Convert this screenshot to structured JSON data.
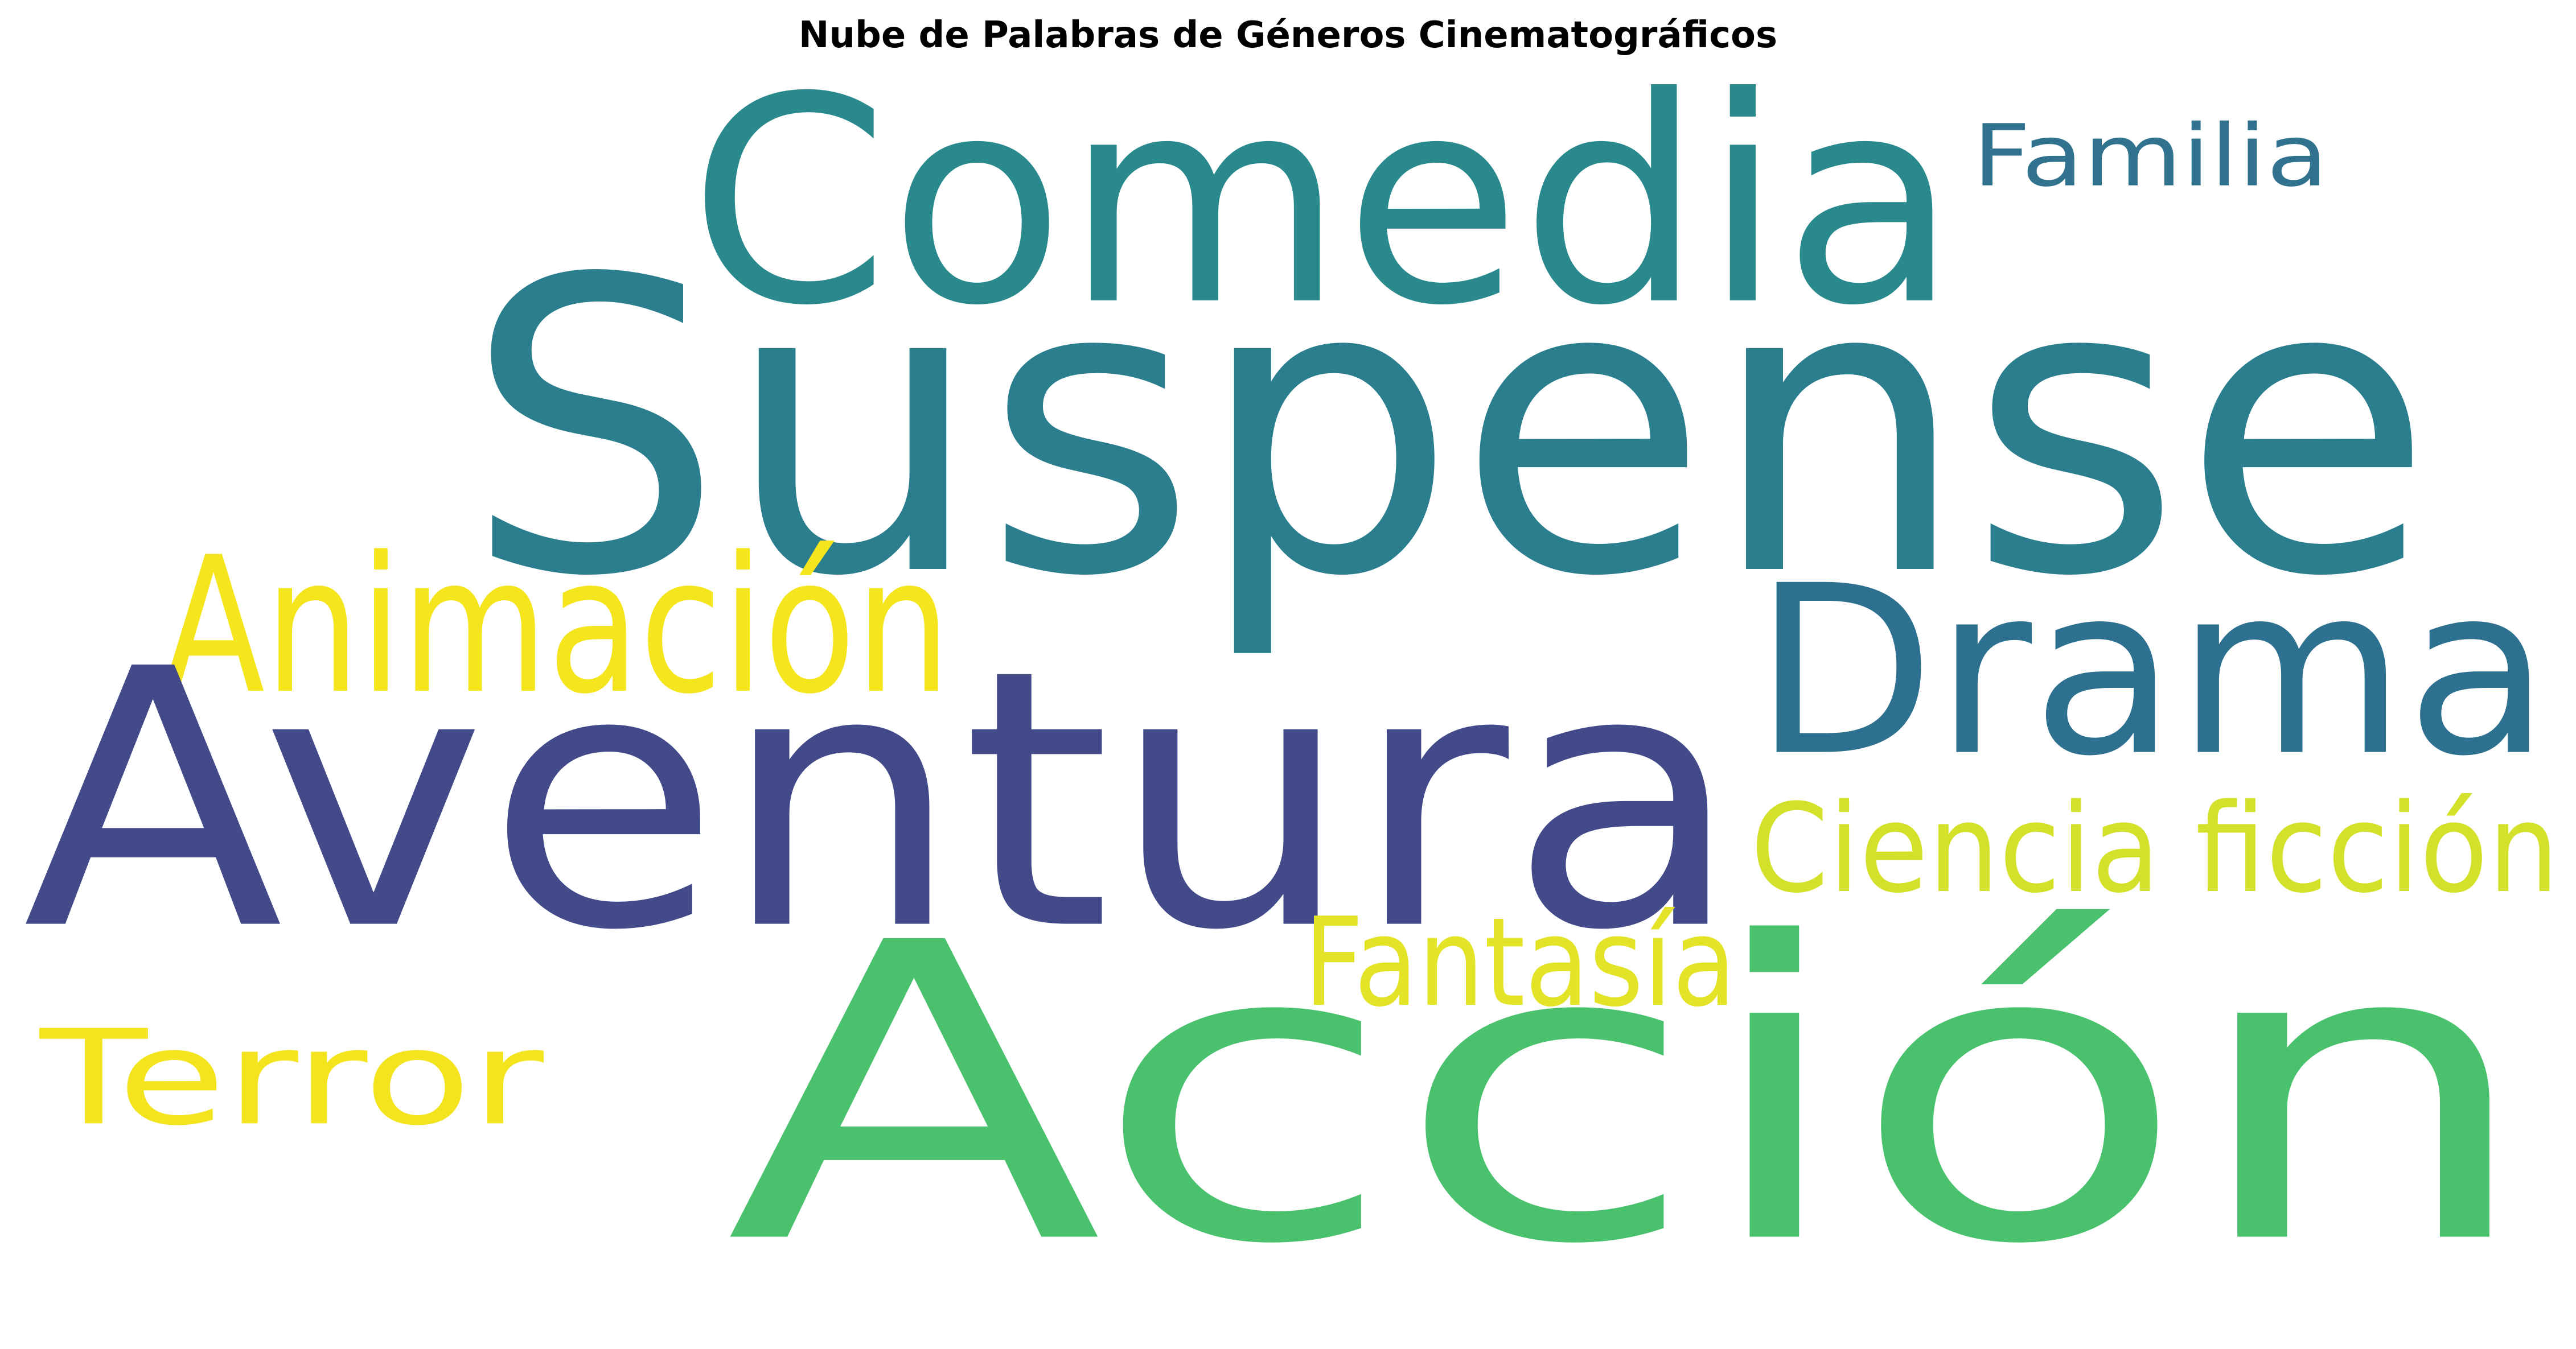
{
  "title": "Nube de Palabras de Géneros Cinematográficos",
  "words": {
    "suspense": {
      "text": "Suspense",
      "color": "#2a7e8e"
    },
    "comedia": {
      "text": "Comedia",
      "color": "#29898c"
    },
    "familia": {
      "text": "Familia",
      "color": "#31728f"
    },
    "animacion": {
      "text": "Animación",
      "color": "#f5e51d"
    },
    "drama": {
      "text": "Drama",
      "color": "#2d708f"
    },
    "aventura": {
      "text": "Aventura",
      "color": "#424a8a"
    },
    "ciencia_ficcion": {
      "text": "Ciencia ficción",
      "color": "#d4e12a"
    },
    "fantasia": {
      "text": "Fantasía",
      "color": "#e3e428"
    },
    "terror": {
      "text": "Terror",
      "color": "#f3e41e"
    },
    "accion": {
      "text": "Acción",
      "color": "#4ac16d"
    }
  }
}
